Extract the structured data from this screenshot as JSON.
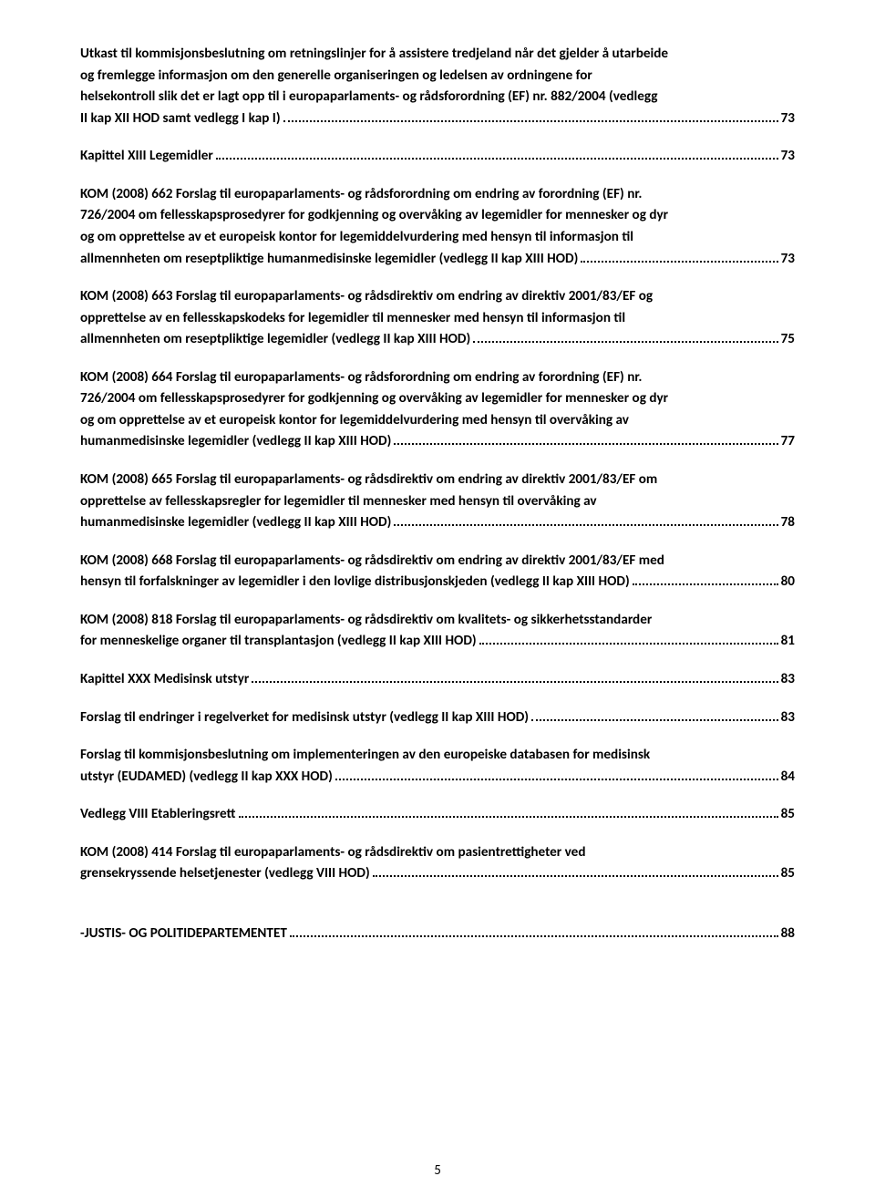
{
  "page_number": "5",
  "entries": [
    {
      "pre": [
        "Utkast til kommisjonsbeslutning om retningslinjer for å assistere tredjeland når det gjelder å utarbeide",
        "og fremlegge informasjon om den generelle organiseringen og ledelsen av ordningene for",
        "helsekontroll slik det er lagt opp til i europaparlaments- og rådsforordning (EF) nr. 882/2004  (vedlegg"
      ],
      "last": "II kap XII HOD samt vedlegg I kap I)",
      "page": "73"
    },
    {
      "pre": [],
      "last": "Kapittel XIII Legemidler",
      "page": "73"
    },
    {
      "pre": [
        "KOM (2008) 662 Forslag til europaparlaments- og rådsforordning om endring av forordning (EF) nr.",
        "726/2004 om fellesskapsprosedyrer for godkjenning og overvåking av legemidler for mennesker og dyr",
        "og om opprettelse av et europeisk kontor for legemiddelvurdering med hensyn til informasjon til"
      ],
      "last": "allmennheten om reseptpliktige humanmedisinske legemidler (vedlegg II kap XIII HOD)",
      "page": "73"
    },
    {
      "pre": [
        "KOM (2008) 663 Forslag til europaparlaments- og rådsdirektiv om endring av direktiv 2001/83/EF og",
        "opprettelse av en fellesskapskodeks for legemidler til mennesker med hensyn til informasjon til"
      ],
      "last": "allmennheten om reseptpliktige legemidler (vedlegg II kap XIII HOD)",
      "page": "75"
    },
    {
      "pre": [
        "KOM (2008) 664 Forslag til europaparlaments- og rådsforordning om endring av forordning (EF) nr.",
        "726/2004 om fellesskapsprosedyrer for godkjenning og overvåking av legemidler for mennesker og dyr",
        "og om opprettelse av et europeisk kontor for legemiddelvurdering med hensyn til overvåking av"
      ],
      "last": "humanmedisinske legemidler (vedlegg II kap XIII HOD)",
      "page": "77"
    },
    {
      "pre": [
        "KOM (2008) 665 Forslag til europaparlaments- og rådsdirektiv om endring av direktiv 2001/83/EF om",
        "opprettelse av fellesskapsregler for legemidler til mennesker med hensyn til overvåking av"
      ],
      "last": "humanmedisinske legemidler (vedlegg II kap XIII HOD)",
      "page": "78"
    },
    {
      "pre": [
        "KOM (2008) 668 Forslag til europaparlaments- og rådsdirektiv om endring av direktiv 2001/83/EF med"
      ],
      "last": "hensyn til forfalskninger av legemidler i den lovlige distribusjonskjeden (vedlegg II kap XIII HOD)",
      "page": "80"
    },
    {
      "pre": [
        "KOM (2008) 818 Forslag til europaparlaments- og rådsdirektiv om kvalitets- og sikkerhetsstandarder"
      ],
      "last": "for menneskelige organer til transplantasjon (vedlegg II kap XIII HOD)",
      "page": "81"
    },
    {
      "pre": [],
      "last": "Kapittel  XXX  Medisinsk utstyr",
      "page": "83"
    },
    {
      "pre": [],
      "last": "Forslag til endringer i regelverket for medisinsk utstyr (vedlegg II kap XIII HOD)",
      "page": "83"
    },
    {
      "pre": [
        "Forslag til kommisjonsbeslutning om implementeringen av den europeiske databasen for medisinsk"
      ],
      "last": "utstyr (EUDAMED)  (vedlegg II kap XXX HOD)",
      "page": "84"
    },
    {
      "pre": [],
      "last": "Vedlegg VIII  Etableringsrett",
      "page": "85"
    },
    {
      "pre": [
        "KOM (2008) 414 Forslag til europaparlaments- og rådsdirektiv om pasientrettigheter ved"
      ],
      "last": "grensekryssende helsetjenester (vedlegg VIII HOD)",
      "page": "85"
    },
    {
      "pre": [],
      "last": "-JUSTIS- OG POLITIDEPARTEMENTET",
      "page": "88",
      "gap": true
    }
  ]
}
